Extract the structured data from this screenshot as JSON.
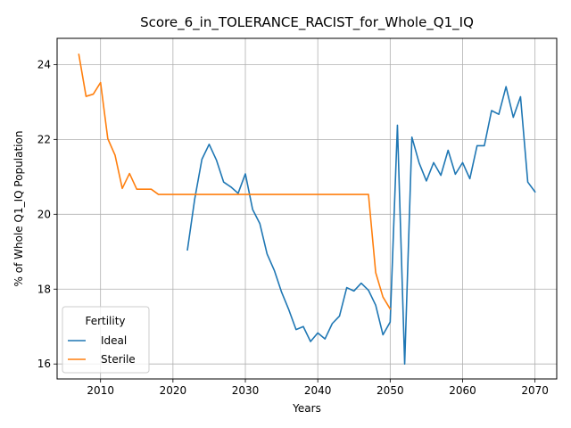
{
  "chart_data": {
    "type": "line",
    "title": "Score_6_in_TOLERANCE_RACIST_for_Whole_Q1_IQ",
    "xlabel": "Years",
    "ylabel": "% of Whole Q1_IQ Population",
    "xlim": [
      2004,
      2073
    ],
    "ylim": [
      15.6,
      24.7
    ],
    "xticks": [
      2010,
      2020,
      2030,
      2040,
      2050,
      2060,
      2070
    ],
    "yticks": [
      16,
      18,
      20,
      22,
      24
    ],
    "grid": true,
    "legend": {
      "title": "Fertility",
      "placement": "lower-left"
    },
    "series": [
      {
        "name": "Ideal",
        "color": "#1f77b4",
        "x": [
          2022,
          2023,
          2024,
          2025,
          2026,
          2027,
          2028,
          2029,
          2030,
          2031,
          2032,
          2033,
          2034,
          2035,
          2036,
          2037,
          2038,
          2039,
          2040,
          2041,
          2042,
          2043,
          2044,
          2045,
          2046,
          2047,
          2048,
          2049,
          2050,
          2051,
          2052,
          2053,
          2054,
          2055,
          2056,
          2057,
          2058,
          2059,
          2060,
          2061,
          2062,
          2063,
          2064,
          2065,
          2066,
          2067,
          2068,
          2069,
          2070
        ],
        "values": [
          19.05,
          20.4,
          21.47,
          21.87,
          21.45,
          20.86,
          20.73,
          20.56,
          21.08,
          20.13,
          19.75,
          18.94,
          18.5,
          17.92,
          17.45,
          16.92,
          17.0,
          16.6,
          16.83,
          16.67,
          17.08,
          17.28,
          18.04,
          17.95,
          18.16,
          17.97,
          17.57,
          16.78,
          17.12,
          22.38,
          16.0,
          22.06,
          21.37,
          20.89,
          21.38,
          21.04,
          21.71,
          21.07,
          21.38,
          20.95,
          21.83,
          21.83,
          22.77,
          22.67,
          23.41,
          22.59,
          23.14,
          20.86,
          20.6
        ]
      },
      {
        "name": "Sterile",
        "color": "#ff7f0e",
        "x": [
          2007,
          2008,
          2009,
          2010,
          2011,
          2012,
          2013,
          2014,
          2015,
          2016,
          2017,
          2018,
          2019,
          2020,
          2021,
          2022,
          2023,
          2024,
          2025,
          2026,
          2027,
          2028,
          2029,
          2030,
          2031,
          2032,
          2033,
          2034,
          2035,
          2036,
          2037,
          2038,
          2039,
          2040,
          2041,
          2042,
          2043,
          2044,
          2045,
          2046,
          2047,
          2048,
          2049,
          2050
        ],
        "values": [
          24.27,
          23.15,
          23.21,
          23.52,
          22.02,
          21.58,
          20.69,
          21.09,
          20.67,
          20.67,
          20.67,
          20.53,
          20.53,
          20.53,
          20.53,
          20.53,
          20.53,
          20.53,
          20.53,
          20.53,
          20.53,
          20.53,
          20.53,
          20.53,
          20.53,
          20.53,
          20.53,
          20.53,
          20.53,
          20.53,
          20.53,
          20.53,
          20.53,
          20.53,
          20.53,
          20.53,
          20.53,
          20.53,
          20.53,
          20.53,
          20.53,
          18.44,
          17.79,
          17.47
        ]
      }
    ]
  }
}
